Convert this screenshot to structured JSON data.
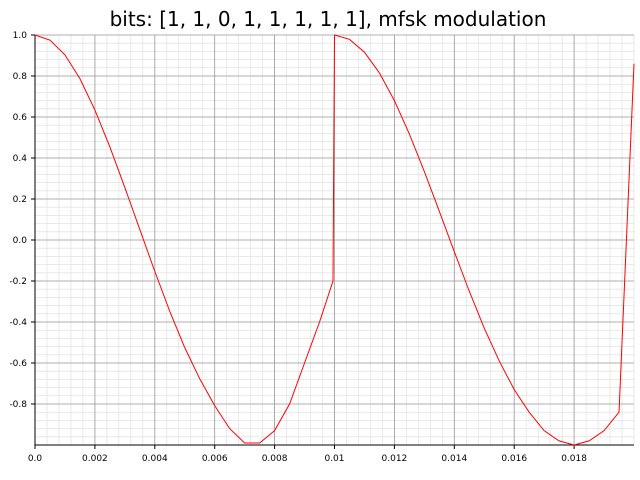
{
  "chart_data": {
    "type": "line",
    "title": "bits: [1, 1, 0, 1, 1, 1, 1, 1], mfsk modulation",
    "xlabel": "",
    "ylabel": "",
    "xlim": [
      0,
      0.02
    ],
    "ylim": [
      -1.0,
      1.0
    ],
    "x_ticks": [
      "0.0",
      "0.002",
      "0.004",
      "0.006",
      "0.008",
      "0.01",
      "0.012",
      "0.014",
      "0.016",
      "0.018"
    ],
    "y_ticks": [
      "1.0",
      "0.8",
      "0.6",
      "0.4",
      "0.2",
      "0.0",
      "-0.2",
      "-0.4",
      "-0.6",
      "-0.8"
    ],
    "grid": true,
    "series": [
      {
        "color": "#ff0000",
        "x": [
          0.0,
          0.0005,
          0.001,
          0.0015,
          0.002,
          0.0025,
          0.003,
          0.0035,
          0.004,
          0.0045,
          0.005,
          0.0055,
          0.006,
          0.0065,
          0.007,
          0.0075,
          0.008,
          0.0085,
          0.009,
          0.0095,
          0.00995,
          0.01,
          0.0105,
          0.011,
          0.0115,
          0.012,
          0.0125,
          0.013,
          0.0135,
          0.014,
          0.0145,
          0.015,
          0.0155,
          0.016,
          0.0165,
          0.017,
          0.0175,
          0.018,
          0.0185,
          0.019,
          0.0195,
          0.02
        ],
        "y": [
          1.0,
          0.975,
          0.903,
          0.787,
          0.634,
          0.454,
          0.256,
          0.051,
          -0.153,
          -0.348,
          -0.525,
          -0.677,
          -0.808,
          -0.92,
          -0.99,
          -0.99,
          -0.93,
          -0.8,
          -0.6,
          -0.4,
          -0.2,
          1.0,
          0.979,
          0.916,
          0.815,
          0.68,
          0.517,
          0.334,
          0.14,
          -0.057,
          -0.25,
          -0.43,
          -0.59,
          -0.73,
          -0.84,
          -0.93,
          -0.98,
          -1.0,
          -0.98,
          -0.93,
          -0.84,
          0.86
        ]
      }
    ]
  }
}
